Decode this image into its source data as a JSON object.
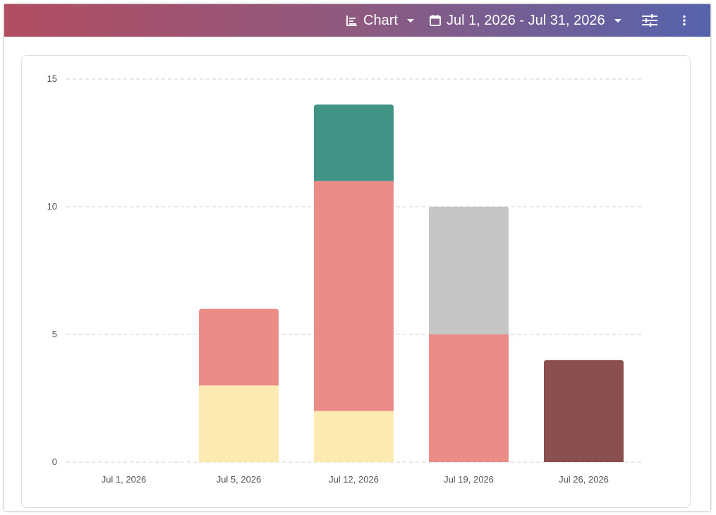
{
  "toolbar": {
    "view_label": "Chart",
    "view_icon": "bar-chart-icon",
    "date_range_label": "Jul 1, 2026 - Jul 31, 2026",
    "date_icon": "calendar-icon",
    "filter_icon": "sliders-icon",
    "more_icon": "more-vertical-icon"
  },
  "chart_data": {
    "type": "bar",
    "stacked": true,
    "categories": [
      "Jul 1, 2026",
      "Jul 5, 2026",
      "Jul 12, 2026",
      "Jul 19, 2026",
      "Jul 26, 2026"
    ],
    "series": [
      {
        "color": "#fdeab2",
        "values": [
          0,
          3,
          2,
          0,
          0
        ]
      },
      {
        "color": "#eb8c89",
        "values": [
          0,
          3,
          9,
          5,
          0
        ]
      },
      {
        "color": "#c6c6c6",
        "values": [
          0,
          0,
          0,
          5,
          0
        ]
      },
      {
        "color": "#419386",
        "values": [
          0,
          0,
          3,
          0,
          0
        ]
      },
      {
        "color": "#8b4f4f",
        "values": [
          0,
          0,
          0,
          0,
          4
        ]
      }
    ],
    "yticks": [
      "0",
      "5",
      "10",
      "15"
    ],
    "ylim": [
      0,
      15
    ],
    "grid": true,
    "legend": "none"
  }
}
